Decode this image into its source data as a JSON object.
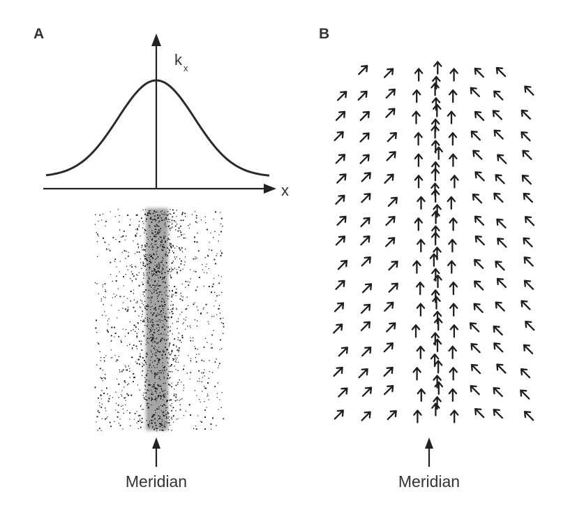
{
  "panel_a": {
    "label": "A",
    "y_axis_label": "k",
    "y_axis_subscript": "x",
    "x_axis_label": "x",
    "caption": "Meridian"
  },
  "panel_b": {
    "label": "B",
    "caption": "Meridian"
  },
  "colors": {
    "ink": "#222222",
    "background": "#ffffff"
  }
}
